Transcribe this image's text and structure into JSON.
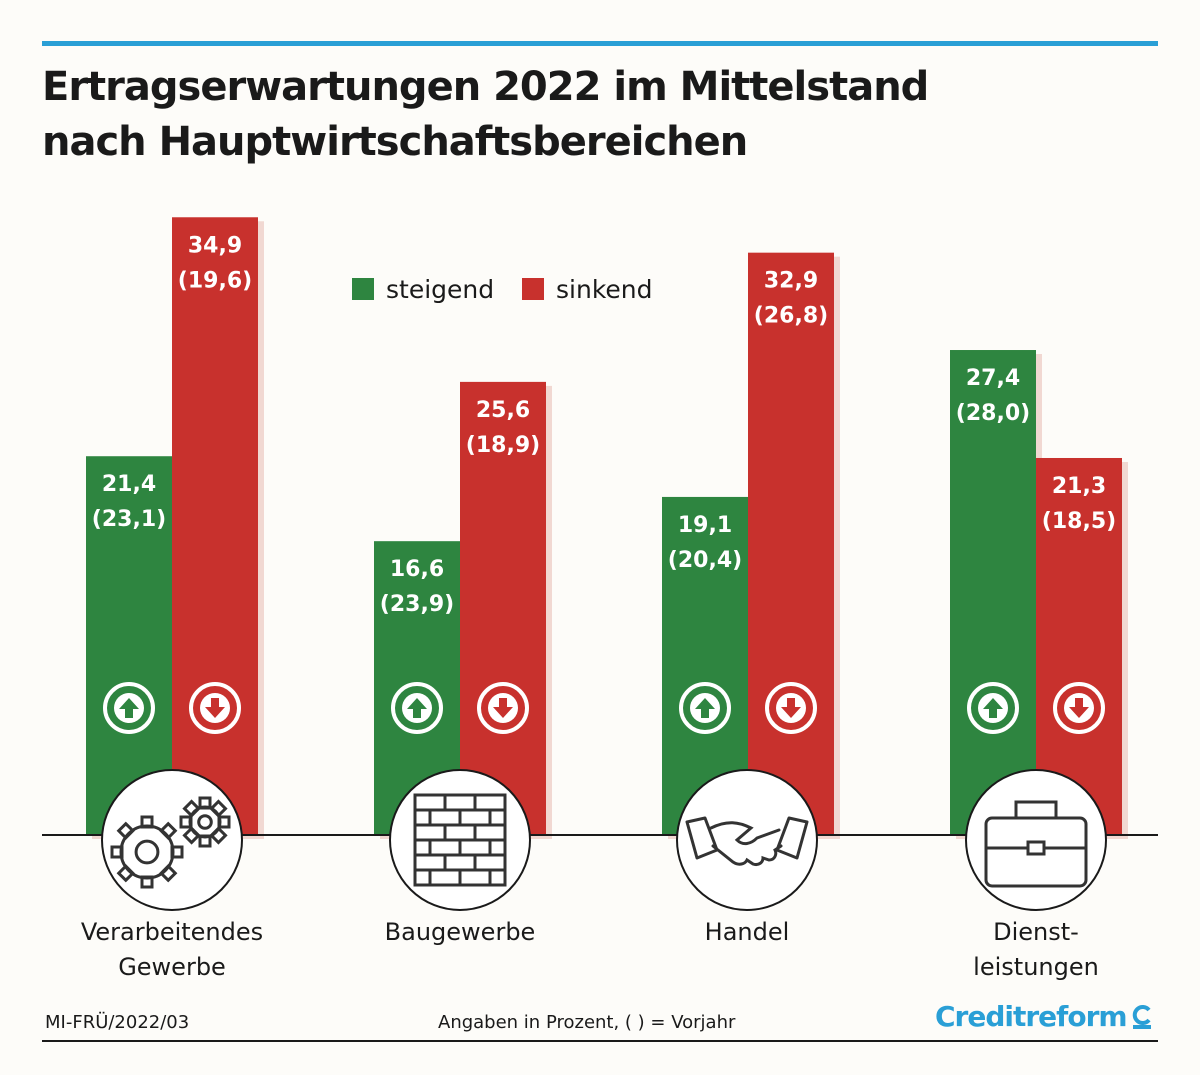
{
  "title_line1": "Ertragserwartungen 2022 im Mittelstand",
  "title_line2": "nach Hauptwirtschaftsbereichen",
  "footer": {
    "code": "MI-FRÜ/2022/03",
    "note": "Angaben in Prozent, ( ) = Vorjahr",
    "brand": "Creditreform"
  },
  "colors": {
    "green": "#2e8540",
    "red": "#c8312d",
    "accent": "#2a9fd6"
  },
  "chart_data": {
    "type": "bar",
    "title": "Ertragserwartungen 2022 im Mittelstand nach Hauptwirtschaftsbereichen",
    "legend": [
      "steigend",
      "sinkend"
    ],
    "legend_position": "top-center",
    "categories": [
      {
        "lines": [
          "Verarbeitendes",
          "Gewerbe"
        ],
        "icon": "gears-icon"
      },
      {
        "lines": [
          "Baugewerbe"
        ],
        "icon": "brick-wall-icon"
      },
      {
        "lines": [
          "Handel"
        ],
        "icon": "handshake-icon"
      },
      {
        "lines": [
          "Dienst-",
          "leistungen"
        ],
        "icon": "briefcase-icon"
      }
    ],
    "series": [
      {
        "name": "steigend",
        "direction": "up",
        "values": [
          21.4,
          16.6,
          19.1,
          27.4
        ],
        "previous_year": [
          23.1,
          23.9,
          20.4,
          28.0
        ],
        "value_labels": [
          "21,4",
          "16,6",
          "19,1",
          "27,4"
        ],
        "previous_labels": [
          "(23,1)",
          "(23,9)",
          "(20,4)",
          "(28,0)"
        ]
      },
      {
        "name": "sinkend",
        "direction": "down",
        "values": [
          34.9,
          25.6,
          32.9,
          21.3
        ],
        "previous_year": [
          19.6,
          18.9,
          26.8,
          18.5
        ],
        "value_labels": [
          "34,9",
          "25,6",
          "32,9",
          "21,3"
        ],
        "previous_labels": [
          "(19,6)",
          "(18,9)",
          "(26,8)",
          "(18,5)"
        ]
      }
    ],
    "unit": "Prozent",
    "grid": false
  }
}
